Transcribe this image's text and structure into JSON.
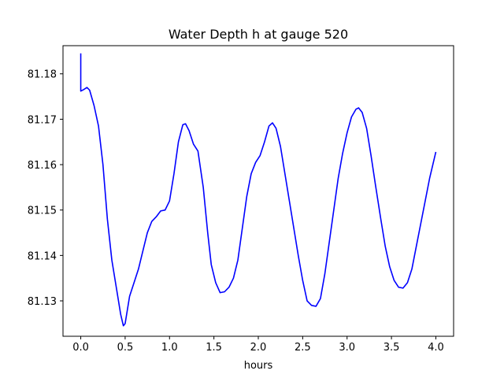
{
  "chart_data": {
    "type": "line",
    "title": "Water Depth h at gauge 520",
    "xlabel": "hours",
    "ylabel": "",
    "xlim": [
      -0.2,
      4.2
    ],
    "ylim": [
      81.1222,
      81.1862
    ],
    "xticks": [
      0.0,
      0.5,
      1.0,
      1.5,
      2.0,
      2.5,
      3.0,
      3.5,
      4.0
    ],
    "xtick_labels": [
      "0.0",
      "0.5",
      "1.0",
      "1.5",
      "2.0",
      "2.5",
      "3.0",
      "3.5",
      "4.0"
    ],
    "yticks": [
      81.13,
      81.14,
      81.15,
      81.16,
      81.17,
      81.18
    ],
    "ytick_labels": [
      "81.13",
      "81.14",
      "81.15",
      "81.16",
      "81.17",
      "81.18"
    ],
    "grid": false,
    "series": [
      {
        "color": "#0000ff",
        "points": [
          [
            0.0,
            81.1845
          ],
          [
            0.0,
            81.1762
          ],
          [
            0.03,
            81.1765
          ],
          [
            0.07,
            81.177
          ],
          [
            0.1,
            81.1764
          ],
          [
            0.15,
            81.173
          ],
          [
            0.2,
            81.1685
          ],
          [
            0.25,
            81.16
          ],
          [
            0.3,
            81.148
          ],
          [
            0.35,
            81.139
          ],
          [
            0.4,
            81.133
          ],
          [
            0.45,
            81.127
          ],
          [
            0.48,
            81.1245
          ],
          [
            0.5,
            81.125
          ],
          [
            0.55,
            81.131
          ],
          [
            0.6,
            81.134
          ],
          [
            0.65,
            81.137
          ],
          [
            0.7,
            81.141
          ],
          [
            0.75,
            81.145
          ],
          [
            0.8,
            81.1475
          ],
          [
            0.85,
            81.1485
          ],
          [
            0.9,
            81.1498
          ],
          [
            0.95,
            81.15
          ],
          [
            1.0,
            81.152
          ],
          [
            1.05,
            81.158
          ],
          [
            1.1,
            81.165
          ],
          [
            1.15,
            81.1688
          ],
          [
            1.18,
            81.169
          ],
          [
            1.22,
            81.1675
          ],
          [
            1.27,
            81.1645
          ],
          [
            1.32,
            81.163
          ],
          [
            1.38,
            81.155
          ],
          [
            1.43,
            81.145
          ],
          [
            1.47,
            81.138
          ],
          [
            1.52,
            81.134
          ],
          [
            1.57,
            81.1318
          ],
          [
            1.62,
            81.132
          ],
          [
            1.67,
            81.133
          ],
          [
            1.72,
            81.135
          ],
          [
            1.77,
            81.139
          ],
          [
            1.82,
            81.146
          ],
          [
            1.87,
            81.153
          ],
          [
            1.92,
            81.158
          ],
          [
            1.97,
            81.1605
          ],
          [
            2.02,
            81.162
          ],
          [
            2.07,
            81.165
          ],
          [
            2.12,
            81.1685
          ],
          [
            2.16,
            81.1692
          ],
          [
            2.2,
            81.168
          ],
          [
            2.25,
            81.164
          ],
          [
            2.3,
            81.158
          ],
          [
            2.35,
            81.152
          ],
          [
            2.4,
            81.146
          ],
          [
            2.45,
            81.14
          ],
          [
            2.5,
            81.1345
          ],
          [
            2.55,
            81.13
          ],
          [
            2.6,
            81.129
          ],
          [
            2.65,
            81.1288
          ],
          [
            2.7,
            81.1305
          ],
          [
            2.75,
            81.136
          ],
          [
            2.8,
            81.143
          ],
          [
            2.85,
            81.15
          ],
          [
            2.9,
            81.157
          ],
          [
            2.95,
            81.1625
          ],
          [
            3.0,
            81.167
          ],
          [
            3.05,
            81.1705
          ],
          [
            3.1,
            81.1722
          ],
          [
            3.13,
            81.1725
          ],
          [
            3.17,
            81.1715
          ],
          [
            3.22,
            81.168
          ],
          [
            3.27,
            81.162
          ],
          [
            3.32,
            81.1555
          ],
          [
            3.38,
            81.148
          ],
          [
            3.43,
            81.142
          ],
          [
            3.48,
            81.1375
          ],
          [
            3.53,
            81.1345
          ],
          [
            3.58,
            81.133
          ],
          [
            3.63,
            81.1328
          ],
          [
            3.68,
            81.134
          ],
          [
            3.73,
            81.137
          ],
          [
            3.78,
            81.142
          ],
          [
            3.83,
            81.147
          ],
          [
            3.88,
            81.152
          ],
          [
            3.93,
            81.157
          ],
          [
            4.0,
            81.1628
          ]
        ]
      }
    ]
  }
}
